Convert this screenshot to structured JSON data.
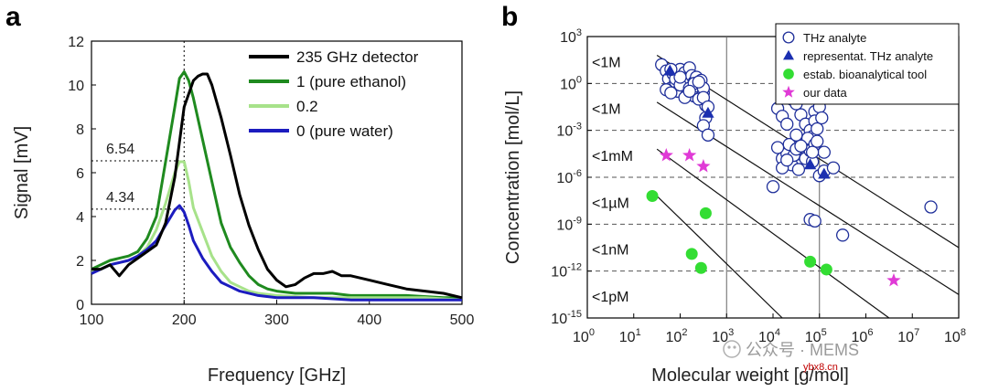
{
  "panels": {
    "a": "a",
    "b": "b"
  },
  "watermark": {
    "text": "公众号 · MEMS",
    "site": "ybx8.cn"
  },
  "chart_data": [
    {
      "type": "line",
      "panel": "a",
      "xlabel": "Frequency [GHz]",
      "ylabel": "Signal [mV]",
      "xlim": [
        100,
        500
      ],
      "ylim": [
        0,
        12
      ],
      "xticks": [
        100,
        200,
        300,
        400,
        500
      ],
      "yticks": [
        0,
        2,
        4,
        6,
        8,
        10,
        12
      ],
      "legend_position": "top-right",
      "annotations": [
        {
          "text": "6.54",
          "y": 6.54
        },
        {
          "text": "4.34",
          "y": 4.34
        }
      ],
      "vline_x": 200,
      "series": [
        {
          "name": "235 GHz detector",
          "color": "#000000",
          "x": [
            100,
            110,
            120,
            130,
            140,
            150,
            160,
            170,
            180,
            190,
            200,
            210,
            215,
            220,
            225,
            230,
            240,
            250,
            260,
            270,
            280,
            290,
            300,
            310,
            320,
            330,
            340,
            350,
            360,
            370,
            380,
            400,
            420,
            440,
            460,
            480,
            500
          ],
          "y": [
            1.6,
            1.6,
            1.8,
            1.3,
            1.8,
            2.1,
            2.4,
            2.7,
            3.7,
            5.8,
            9.0,
            10.2,
            10.4,
            10.5,
            10.5,
            10.0,
            8.5,
            6.8,
            5.0,
            3.6,
            2.5,
            1.6,
            1.1,
            0.8,
            0.9,
            1.2,
            1.4,
            1.4,
            1.5,
            1.3,
            1.3,
            1.1,
            0.9,
            0.7,
            0.6,
            0.5,
            0.3
          ]
        },
        {
          "name": "1 (pure ethanol)",
          "color": "#1f8a1f",
          "x": [
            100,
            110,
            120,
            130,
            140,
            150,
            160,
            170,
            180,
            190,
            195,
            200,
            205,
            210,
            220,
            230,
            240,
            250,
            260,
            270,
            280,
            290,
            300,
            320,
            340,
            360,
            380,
            400,
            440,
            480,
            500
          ],
          "y": [
            1.6,
            1.8,
            2.0,
            2.1,
            2.2,
            2.4,
            3.0,
            4.0,
            6.5,
            9.0,
            10.3,
            10.6,
            10.2,
            9.4,
            7.5,
            5.6,
            3.7,
            2.6,
            1.9,
            1.3,
            0.9,
            0.7,
            0.6,
            0.5,
            0.5,
            0.5,
            0.4,
            0.4,
            0.4,
            0.3,
            0.3
          ]
        },
        {
          "name": "0.2",
          "color": "#a7e28a",
          "x": [
            100,
            110,
            120,
            130,
            140,
            150,
            160,
            170,
            180,
            190,
            195,
            200,
            205,
            210,
            220,
            230,
            240,
            250,
            260,
            270,
            280,
            300,
            340,
            380,
            420,
            460,
            500
          ],
          "y": [
            1.5,
            1.6,
            1.8,
            1.9,
            2.0,
            2.2,
            2.6,
            3.4,
            4.6,
            6.0,
            6.5,
            6.5,
            5.6,
            4.4,
            3.3,
            2.2,
            1.5,
            1.0,
            0.8,
            0.6,
            0.5,
            0.4,
            0.3,
            0.3,
            0.3,
            0.3,
            0.2
          ]
        },
        {
          "name": "0 (pure water)",
          "color": "#1c1cbf",
          "x": [
            100,
            110,
            120,
            130,
            140,
            150,
            160,
            170,
            180,
            190,
            195,
            200,
            205,
            210,
            220,
            230,
            240,
            250,
            260,
            280,
            300,
            340,
            380,
            420,
            460,
            500
          ],
          "y": [
            1.4,
            1.6,
            1.8,
            1.9,
            2.0,
            2.2,
            2.5,
            2.9,
            3.6,
            4.3,
            4.5,
            4.2,
            3.6,
            2.9,
            2.1,
            1.5,
            1.0,
            0.8,
            0.6,
            0.4,
            0.3,
            0.3,
            0.2,
            0.2,
            0.2,
            0.2
          ]
        }
      ]
    },
    {
      "type": "scatter",
      "panel": "b",
      "xlabel": "Molecular weight [g/mol]",
      "ylabel": "Concentration [mol/L]",
      "xscale": "log",
      "yscale": "log",
      "xlim_exp": [
        0,
        8
      ],
      "ylim_exp": [
        -15,
        3
      ],
      "x_tick_exponents": [
        0,
        1,
        2,
        3,
        4,
        5,
        6,
        7,
        8
      ],
      "y_tick_exponents": [
        -15,
        -12,
        -9,
        -6,
        -3,
        0,
        3
      ],
      "tick_base": "10",
      "legend_position": "top-right",
      "concentration_labels": [
        {
          "text": "<1M",
          "log_y": 1.4
        },
        {
          "text": "<1M",
          "log_y": -1.6
        },
        {
          "text": "<1mM",
          "log_y": -4.6
        },
        {
          "text": "<1µM",
          "log_y": -7.6
        },
        {
          "text": "<1nM",
          "log_y": -10.6
        },
        {
          "text": "<1pM",
          "log_y": -13.6
        }
      ],
      "diagonal_lines": [
        {
          "from": [
            1.5,
            1.8
          ],
          "to": [
            8,
            -10.5
          ]
        },
        {
          "from": [
            1.5,
            -1.2
          ],
          "to": [
            8,
            -13.5
          ]
        },
        {
          "from": [
            1.5,
            -4.2
          ],
          "to": [
            6.5,
            -15
          ]
        },
        {
          "from": [
            1.5,
            -7.2
          ],
          "to": [
            4.2,
            -15
          ]
        }
      ],
      "dashed_levels_log_y": [
        -12,
        -9,
        -6,
        -3,
        0
      ],
      "vertical_lines_log_x": [
        3,
        5
      ],
      "series": [
        {
          "name": "THz analyte",
          "marker": "open-circle",
          "color": "#1f2f9a",
          "log_x": [
            1.6,
            1.7,
            1.75,
            1.8,
            1.85,
            1.9,
            1.95,
            2.0,
            2.0,
            2.05,
            2.1,
            2.1,
            2.15,
            2.2,
            2.2,
            2.25,
            2.3,
            2.3,
            2.35,
            2.4,
            2.45,
            2.5,
            2.55,
            1.7,
            1.8,
            1.9,
            2.0,
            2.1,
            2.2,
            2.3,
            2.4,
            2.5,
            1.8,
            2.0,
            2.2,
            2.4,
            2.5,
            2.6,
            2.55,
            2.5,
            2.6,
            4.6,
            4.7,
            4.8,
            4.85,
            4.9,
            4.9,
            4.95,
            5.0,
            5.05,
            4.55,
            4.6,
            4.65,
            4.7,
            4.75,
            4.8,
            4.85,
            4.9,
            5.1,
            4.2,
            4.3,
            4.35,
            4.4,
            4.45,
            4.5,
            4.55,
            4.6,
            4.1,
            4.2,
            4.3,
            4.4,
            4.5,
            4.1,
            4.2,
            4.3,
            4.5,
            4.0,
            4.8,
            4.9,
            5.0,
            5.1,
            5.3,
            5.5,
            7.4,
            4.85,
            4.95
          ],
          "log_y": [
            1.2,
            0.8,
            0.3,
            -0.3,
            0.6,
            0.1,
            -0.5,
            0.9,
            0.2,
            0.5,
            -0.2,
            0.7,
            0.3,
            -0.4,
            1.0,
            0.5,
            0.1,
            -0.8,
            0.4,
            -0.2,
            0.2,
            -0.6,
            -1.4,
            -0.4,
            -0.6,
            0.3,
            -0.1,
            -0.9,
            -0.3,
            0.0,
            -1.0,
            -0.3,
            0.9,
            0.4,
            -0.5,
            0.1,
            -0.9,
            -1.5,
            -2.2,
            -2.7,
            -3.3,
            -2.0,
            -2.6,
            -3.0,
            -3.4,
            -1.8,
            -2.4,
            -2.9,
            -1.5,
            -2.2,
            -4.5,
            -3.8,
            -4.1,
            -4.8,
            -3.5,
            -4.3,
            -5.0,
            -3.9,
            -4.4,
            -4.8,
            -4.5,
            -3.9,
            -5.2,
            -4.6,
            -4.2,
            -5.5,
            -4.0,
            -1.6,
            -2.1,
            -2.6,
            -1.0,
            -1.3,
            -4.1,
            -5.4,
            -4.9,
            -3.3,
            -6.6,
            -8.7,
            -8.8,
            -5.9,
            -5.6,
            -5.4,
            -9.7,
            -7.9,
            -4.4,
            -3.7
          ]
        },
        {
          "name": "representat. THz analyte",
          "marker": "filled-triangle",
          "color": "#1b2fb0",
          "log_x": [
            1.78,
            2.6,
            4.8,
            5.1
          ],
          "log_y": [
            0.8,
            -1.9,
            -5.2,
            -5.8
          ]
        },
        {
          "name": "estab. bioanalytical tool",
          "marker": "filled-circle",
          "color": "#33dd33",
          "log_x": [
            1.4,
            2.25,
            2.55,
            2.45,
            4.8,
            5.15
          ],
          "log_y": [
            -7.2,
            -10.9,
            -8.3,
            -11.8,
            -11.4,
            -11.9
          ]
        },
        {
          "name": "our data",
          "marker": "star",
          "color": "#e03ad6",
          "log_x": [
            1.7,
            2.2,
            2.5,
            6.6
          ],
          "log_y": [
            -4.6,
            -4.6,
            -5.3,
            -12.6
          ]
        }
      ]
    }
  ]
}
